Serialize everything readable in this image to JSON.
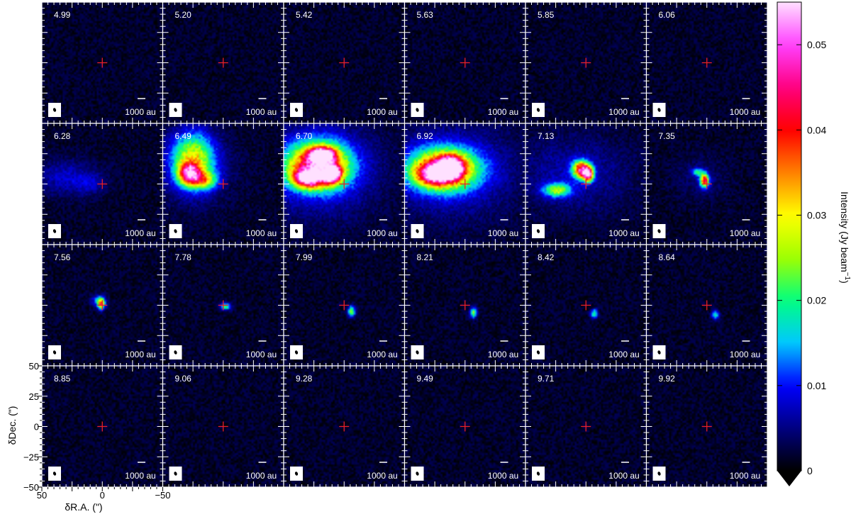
{
  "chart_data": {
    "type": "heatmap",
    "subtype": "channel-map grid",
    "rows": 4,
    "cols": 6,
    "channel_labels": [
      "4.99",
      "5.20",
      "5.42",
      "5.63",
      "5.85",
      "6.06",
      "6.28",
      "6.49",
      "6.70",
      "6.92",
      "7.13",
      "7.35",
      "7.56",
      "7.78",
      "7.99",
      "8.21",
      "8.42",
      "8.64",
      "8.85",
      "9.06",
      "9.28",
      "9.49",
      "9.71",
      "9.92"
    ],
    "scale_bar_label": "1000 au",
    "xlabel": "δR.A. (\")",
    "ylabel": "δDec. (\")",
    "xlim": [
      50,
      -50
    ],
    "ylim": [
      -50,
      50
    ],
    "x_ticks": [
      50,
      0,
      -50
    ],
    "y_ticks": [
      50,
      25,
      0,
      -25,
      -50
    ],
    "x_tick_labels": [
      "50",
      "0",
      "−50"
    ],
    "y_tick_labels": [
      "50",
      "25",
      "0",
      "−25",
      "−50"
    ],
    "tick_labeled_panel": "bottom-left",
    "center_marker": {
      "x": 0,
      "y": 0,
      "color": "#e8202a"
    },
    "colorbar": {
      "label": "Intensity (Jy beam",
      "label_superscript": "−1",
      "label_close": ")",
      "min": 0,
      "max": 0.055,
      "ticks": [
        0,
        0.01,
        0.02,
        0.03,
        0.04,
        0.05
      ],
      "tick_labels": [
        "0",
        "0.01",
        "0.02",
        "0.03",
        "0.04",
        "0.05"
      ],
      "extend": "min",
      "colormap": [
        "#000000",
        "#000080",
        "#0000ff",
        "#00c8ff",
        "#00ff80",
        "#a0ff00",
        "#ffff00",
        "#ff8000",
        "#ff0000",
        "#ff0080",
        "#ff40ff",
        "#ffe0ff"
      ]
    },
    "emission": [
      {
        "channel": "6.28",
        "blobs": [
          {
            "x": 30,
            "y": 5,
            "sx": 18,
            "sy": 10,
            "peak": 0.006
          },
          {
            "x": 10,
            "y": 0,
            "sx": 8,
            "sy": 6,
            "peak": 0.004
          }
        ]
      },
      {
        "channel": "6.49",
        "blobs": [
          {
            "x": 25,
            "y": 20,
            "sx": 12,
            "sy": 15,
            "peak": 0.026
          },
          {
            "x": 28,
            "y": 8,
            "sx": 6,
            "sy": 6,
            "peak": 0.034
          },
          {
            "x": 15,
            "y": 3,
            "sx": 7,
            "sy": 5,
            "peak": 0.02
          },
          {
            "x": 25,
            "y": 12,
            "sx": 22,
            "sy": 22,
            "peak": 0.004
          }
        ]
      },
      {
        "channel": "6.70",
        "blobs": [
          {
            "x": 22,
            "y": 15,
            "sx": 18,
            "sy": 13,
            "peak": 0.04
          },
          {
            "x": 18,
            "y": 24,
            "sx": 7,
            "sy": 4,
            "peak": 0.046
          },
          {
            "x": 10,
            "y": 8,
            "sx": 5,
            "sy": 5,
            "peak": 0.044
          },
          {
            "x": 30,
            "y": 5,
            "sx": 8,
            "sy": 5,
            "peak": 0.038
          },
          {
            "x": 20,
            "y": 12,
            "sx": 34,
            "sy": 28,
            "peak": 0.007
          }
        ]
      },
      {
        "channel": "6.92",
        "blobs": [
          {
            "x": 18,
            "y": 12,
            "sx": 20,
            "sy": 12,
            "peak": 0.036
          },
          {
            "x": 12,
            "y": 14,
            "sx": 7,
            "sy": 6,
            "peak": 0.044
          },
          {
            "x": 25,
            "y": 8,
            "sx": 10,
            "sy": 6,
            "peak": 0.03
          },
          {
            "x": 10,
            "y": 10,
            "sx": 38,
            "sy": 28,
            "peak": 0.006
          }
        ]
      },
      {
        "channel": "7.13",
        "blobs": [
          {
            "x": 4,
            "y": 12,
            "sx": 5,
            "sy": 5,
            "peak": 0.04
          },
          {
            "x": -2,
            "y": 8,
            "sx": 3,
            "sy": 4,
            "peak": 0.046
          },
          {
            "x": 24,
            "y": -5,
            "sx": 8,
            "sy": 4,
            "peak": 0.022
          },
          {
            "x": 10,
            "y": 8,
            "sx": 32,
            "sy": 22,
            "peak": 0.005
          }
        ]
      },
      {
        "channel": "7.35",
        "blobs": [
          {
            "x": 2,
            "y": 3,
            "sx": 2.5,
            "sy": 4,
            "peak": 0.04
          },
          {
            "x": 8,
            "y": 10,
            "sx": 3,
            "sy": 2,
            "peak": 0.018
          },
          {
            "x": 5,
            "y": 5,
            "sx": 14,
            "sy": 12,
            "peak": 0.003
          }
        ]
      },
      {
        "channel": "7.56",
        "blobs": [
          {
            "x": 1,
            "y": 1,
            "sx": 2,
            "sy": 3,
            "peak": 0.034
          },
          {
            "x": 3,
            "y": 4,
            "sx": 4,
            "sy": 3,
            "peak": 0.012
          }
        ]
      },
      {
        "channel": "7.78",
        "blobs": [
          {
            "x": -2,
            "y": -1,
            "sx": 3,
            "sy": 2,
            "peak": 0.02
          }
        ]
      },
      {
        "channel": "7.99",
        "blobs": [
          {
            "x": -6,
            "y": -5,
            "sx": 2,
            "sy": 3,
            "peak": 0.024
          }
        ]
      },
      {
        "channel": "8.21",
        "blobs": [
          {
            "x": -7,
            "y": -6,
            "sx": 2,
            "sy": 3,
            "peak": 0.022
          }
        ]
      },
      {
        "channel": "8.42",
        "blobs": [
          {
            "x": -7,
            "y": -7,
            "sx": 2,
            "sy": 2.5,
            "peak": 0.02
          }
        ]
      },
      {
        "channel": "8.64",
        "blobs": [
          {
            "x": -7,
            "y": -8,
            "sx": 2,
            "sy": 2.5,
            "peak": 0.018
          }
        ]
      }
    ],
    "noise_level": 0.0022,
    "grid": false,
    "legend": "colorbar-right"
  }
}
